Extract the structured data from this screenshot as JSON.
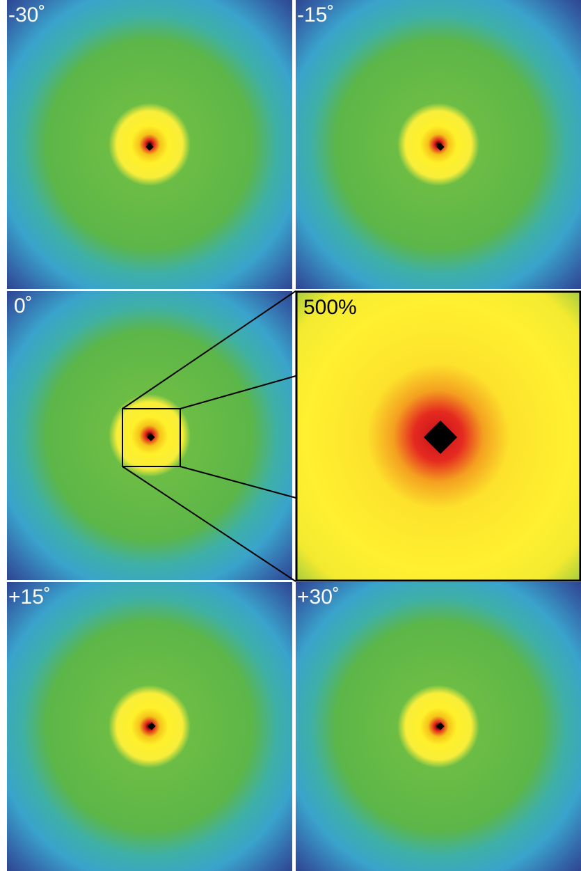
{
  "panels": [
    {
      "label": "-30˚"
    },
    {
      "label": "-15˚"
    },
    {
      "label": "0˚"
    },
    {
      "label": "+15˚"
    },
    {
      "label": "+30˚"
    }
  ],
  "inset": {
    "label": "500%"
  }
}
